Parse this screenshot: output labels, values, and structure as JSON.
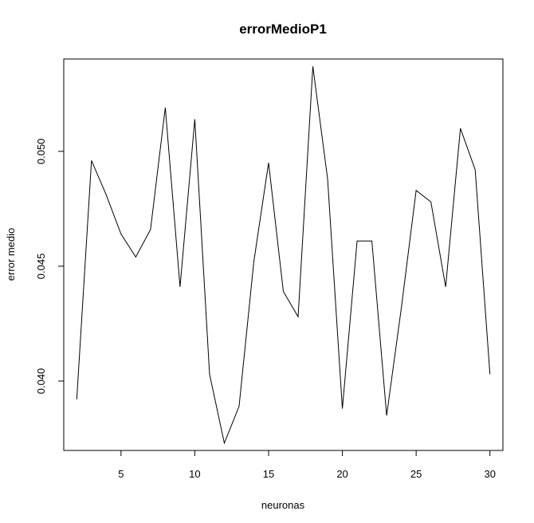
{
  "chart_data": {
    "type": "line",
    "title": "errorMedioP1",
    "xlabel": "neuronas",
    "ylabel": "error medio",
    "x": [
      2,
      3,
      4,
      5,
      6,
      7,
      8,
      9,
      10,
      11,
      12,
      13,
      14,
      15,
      16,
      17,
      18,
      19,
      20,
      21,
      22,
      23,
      24,
      25,
      26,
      27,
      28,
      29,
      30
    ],
    "series": [
      {
        "values": [
          0.0392,
          0.0496,
          0.0481,
          0.0464,
          0.0454,
          0.0466,
          0.0519,
          0.0441,
          0.0514,
          0.0403,
          0.0373,
          0.0389,
          0.0452,
          0.0495,
          0.0439,
          0.0428,
          0.0537,
          0.0488,
          0.0388,
          0.0461,
          0.0461,
          0.0385,
          0.0432,
          0.0483,
          0.0478,
          0.0441,
          0.051,
          0.0492,
          0.0403
        ],
        "color": "#000000"
      }
    ],
    "xlim": [
      1.12,
      30.88
    ],
    "ylim": [
      0.03698,
      0.05402
    ],
    "x_ticks": [
      5,
      10,
      15,
      20,
      25,
      30
    ],
    "y_ticks": [
      0.04,
      0.045,
      0.05
    ],
    "x_tick_labels": [
      "5",
      "10",
      "15",
      "20",
      "25",
      "30"
    ],
    "y_tick_labels": [
      "0.040",
      "0.045",
      "0.050"
    ],
    "grid": false,
    "legend": "none"
  }
}
